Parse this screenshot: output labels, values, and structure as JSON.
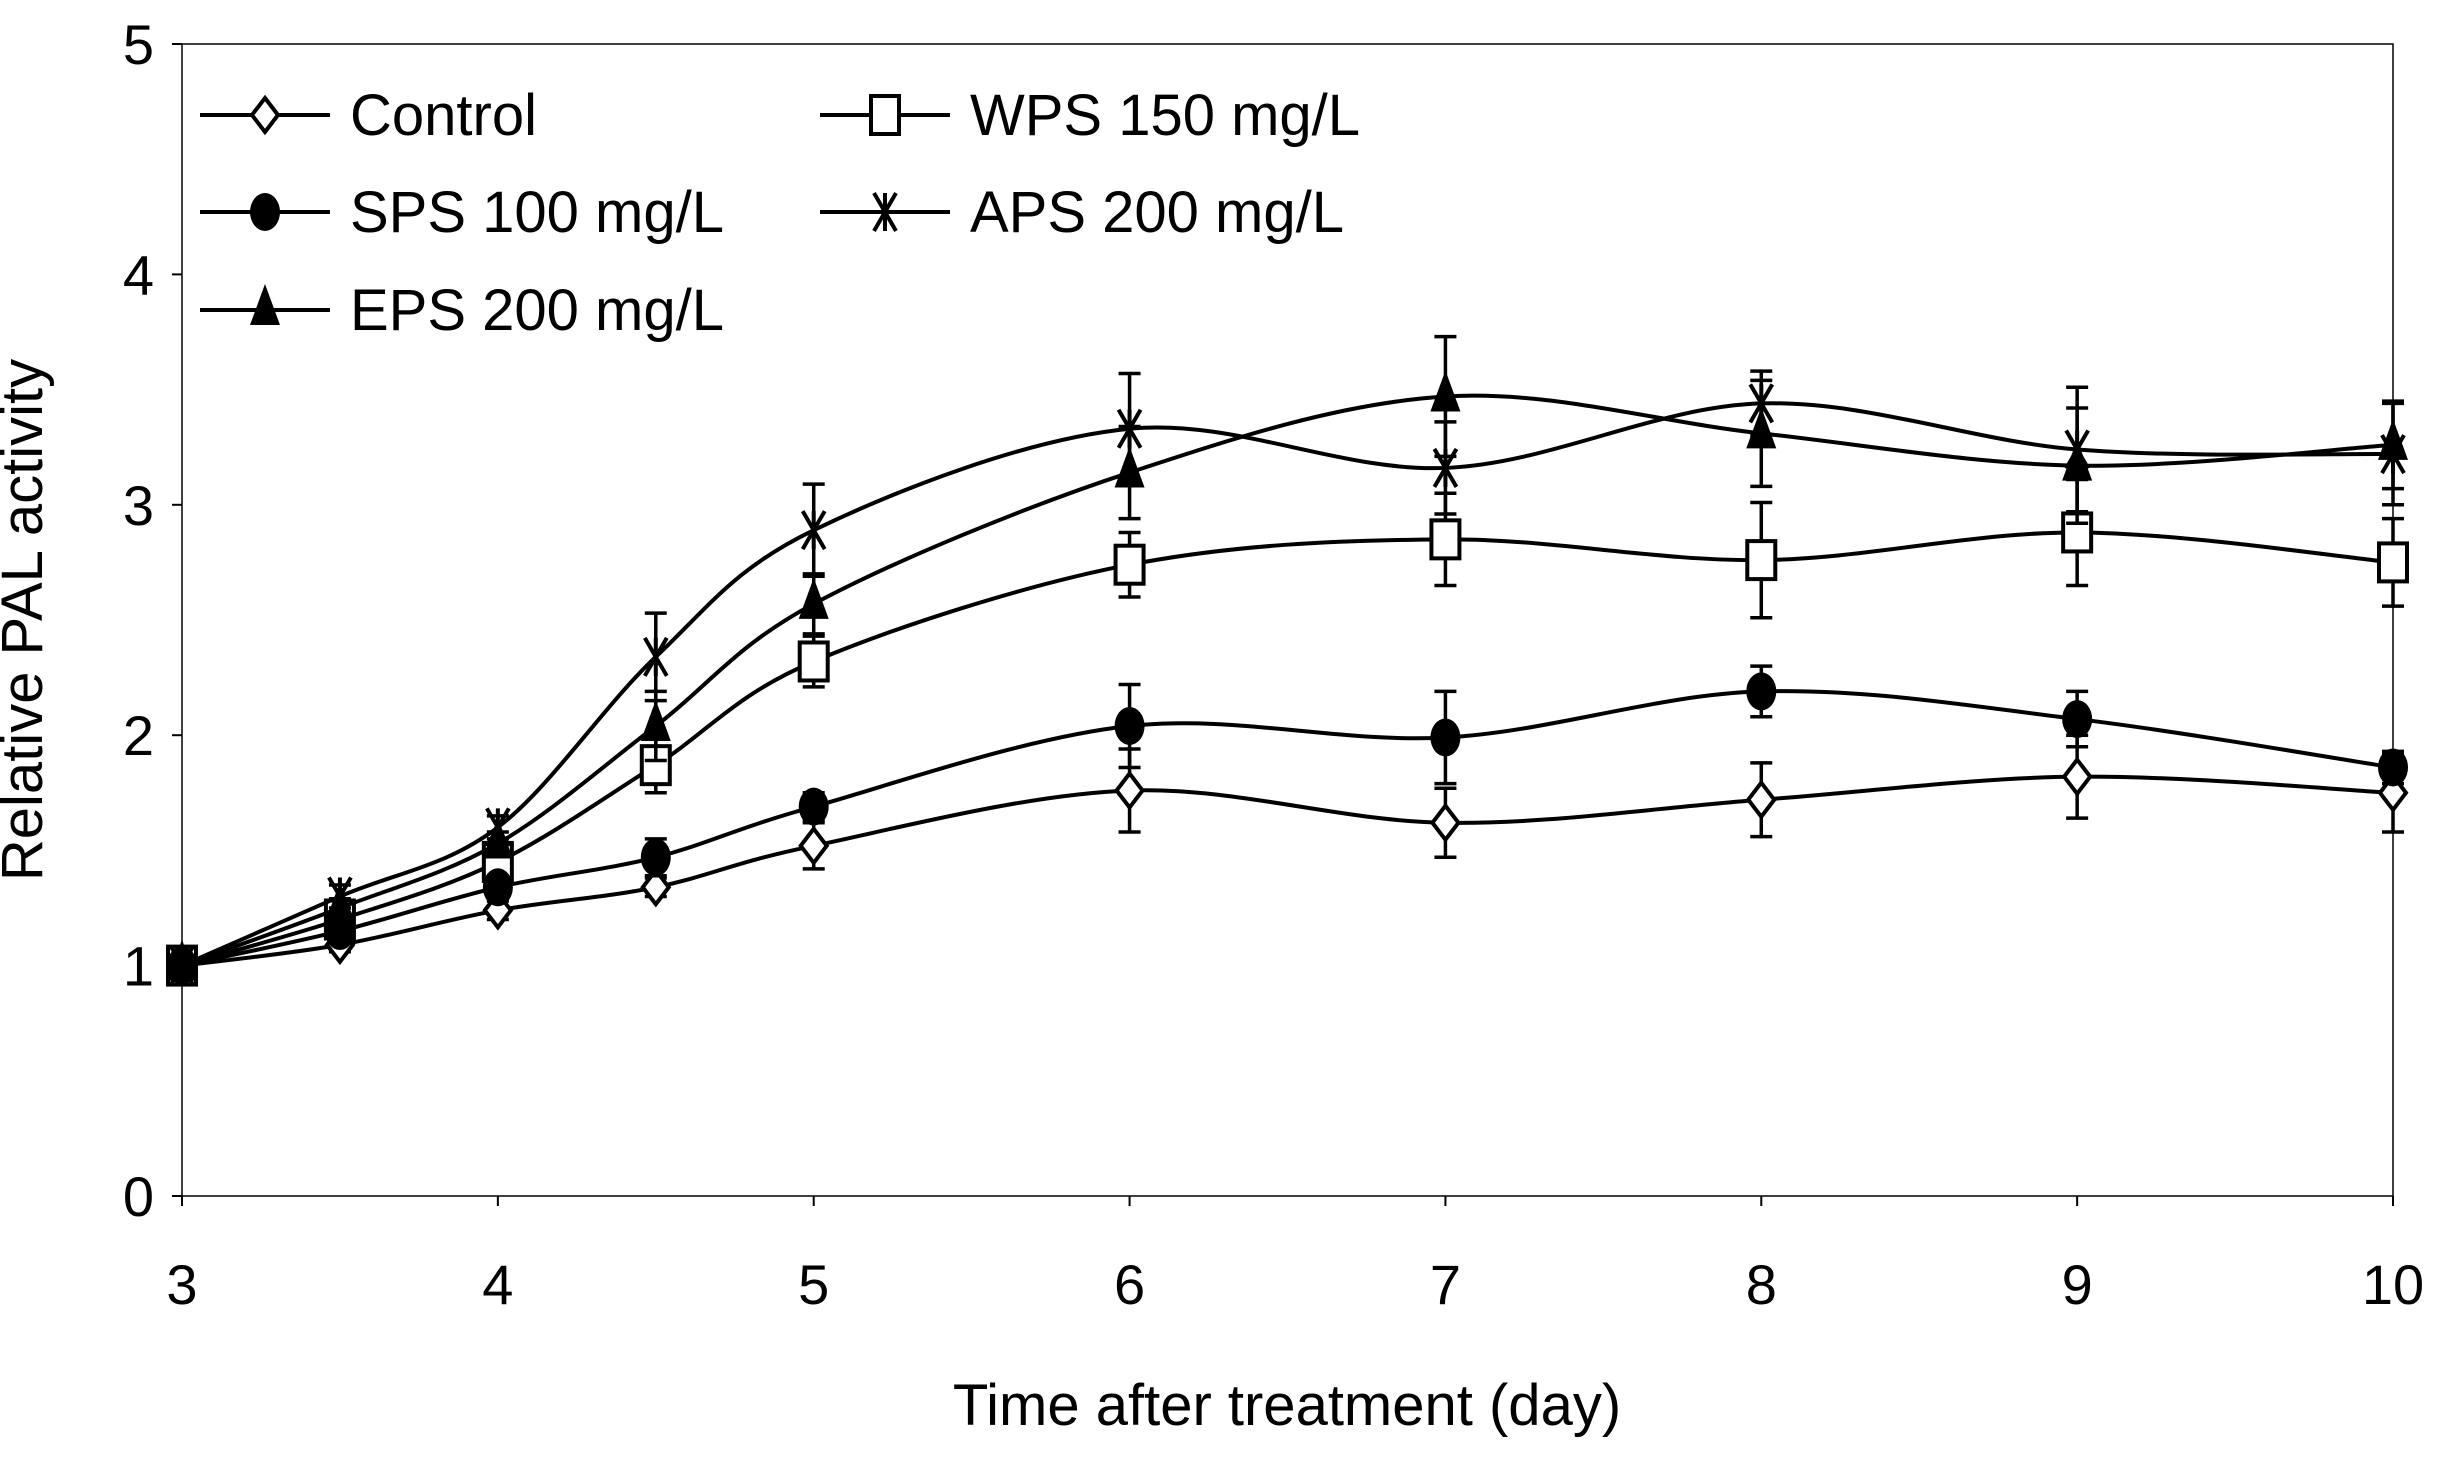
{
  "chart_data": {
    "type": "line",
    "title": "",
    "xlabel": "Time after treatment (day)",
    "ylabel": "Relative PAL activity",
    "xlim": [
      3,
      10
    ],
    "ylim": [
      0,
      5
    ],
    "xticks": [
      "3",
      "4",
      "5",
      "6",
      "7",
      "8",
      "9",
      "10"
    ],
    "yticks": [
      "0",
      "1",
      "2",
      "3",
      "4",
      "5"
    ],
    "grid": false,
    "legend_position": "top-left",
    "x": [
      3,
      3.5,
      4,
      4.5,
      5,
      6,
      7,
      8,
      9,
      10
    ],
    "series": [
      {
        "name": "Control",
        "marker": "diamond-open",
        "values": [
          1,
          1.09,
          1.24,
          1.34,
          1.52,
          1.76,
          1.62,
          1.72,
          1.82,
          1.75
        ],
        "errors": [
          0,
          0.03,
          0.04,
          0.04,
          0.1,
          0.18,
          0.15,
          0.16,
          0.18,
          0.17
        ]
      },
      {
        "name": "WPS 150 mg/L",
        "marker": "square-open",
        "values": [
          1,
          1.2,
          1.45,
          1.87,
          2.32,
          2.74,
          2.85,
          2.76,
          2.88,
          2.75
        ],
        "errors": [
          0,
          0.04,
          0.06,
          0.12,
          0.11,
          0.14,
          0.2,
          0.25,
          0.23,
          0.19
        ]
      },
      {
        "name": "SPS 100 mg/L",
        "marker": "circle-filled",
        "values": [
          1,
          1.15,
          1.34,
          1.47,
          1.69,
          2.04,
          1.99,
          2.19,
          2.07,
          1.86
        ],
        "errors": [
          0,
          0.03,
          0.04,
          0.08,
          0.06,
          0.18,
          0.2,
          0.11,
          0.12,
          0.07
        ]
      },
      {
        "name": "APS 200 mg/L",
        "marker": "star",
        "values": [
          1,
          1.3,
          1.6,
          2.34,
          2.89,
          3.33,
          3.16,
          3.44,
          3.24,
          3.22
        ],
        "errors": [
          0,
          0.05,
          0.05,
          0.19,
          0.2,
          0.24,
          0.2,
          0.14,
          0.27,
          0.22
        ]
      },
      {
        "name": "EPS 200 mg/L",
        "marker": "triangle-filled",
        "values": [
          1,
          1.25,
          1.53,
          2.04,
          2.57,
          3.14,
          3.47,
          3.31,
          3.17,
          3.26
        ],
        "errors": [
          0,
          0.04,
          0.05,
          0.15,
          0.13,
          0.2,
          0.26,
          0.23,
          0.25,
          0.19
        ]
      }
    ]
  }
}
